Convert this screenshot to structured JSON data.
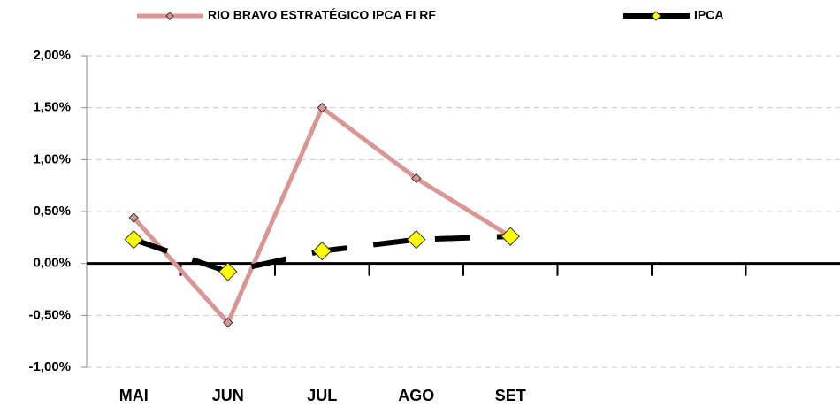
{
  "chart_data": {
    "type": "line",
    "categories": [
      "MAI",
      "JUN",
      "JUL",
      "AGO",
      "SET",
      null,
      null,
      null
    ],
    "series": [
      {
        "name": "RIO BRAVO ESTRATÉGICO IPCA FI RF",
        "color": "#d99694",
        "values": [
          0.44,
          -0.57,
          1.5,
          0.82,
          0.26,
          null,
          null,
          null
        ]
      },
      {
        "name": "IPCA",
        "color": "#000000",
        "values": [
          0.23,
          -0.08,
          0.12,
          0.23,
          0.26,
          null,
          null,
          null
        ]
      }
    ],
    "ylim": [
      -1,
      2
    ],
    "yticks": [
      {
        "value": -1,
        "label": "-1,00%"
      },
      {
        "value": -0.5,
        "label": "-0,50%"
      },
      {
        "value": 0,
        "label": "0,00%"
      },
      {
        "value": 0.5,
        "label": "0,50%"
      },
      {
        "value": 1,
        "label": "1,00%"
      },
      {
        "value": 1.5,
        "label": "1,50%"
      },
      {
        "value": 2,
        "label": "2,00%"
      }
    ],
    "grid": true
  }
}
